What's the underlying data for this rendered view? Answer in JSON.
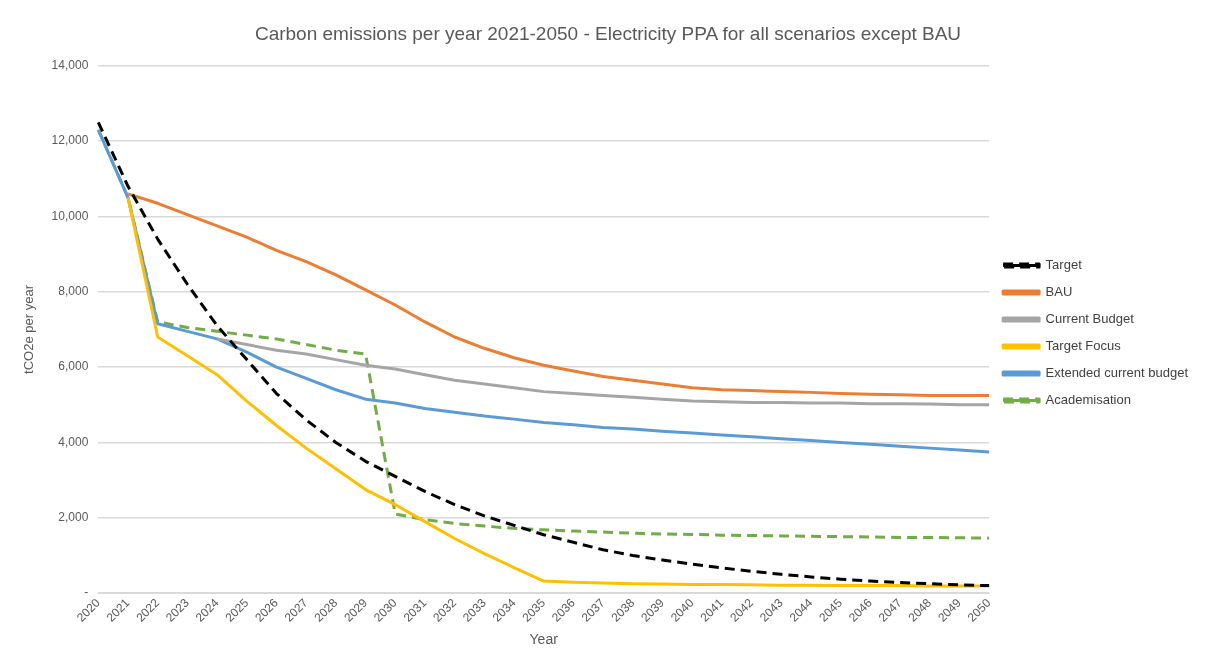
{
  "chart_data": {
    "type": "line",
    "title": "Carbon emissions per year 2021-2050 - Electricity PPA for all scenarios except BAU",
    "xlabel": "Year",
    "ylabel": "tCO2e per year",
    "categories": [
      "2020",
      "2021",
      "2022",
      "2023",
      "2024",
      "2025",
      "2026",
      "2027",
      "2028",
      "2029",
      "2030",
      "2031",
      "2032",
      "2033",
      "2034",
      "2035",
      "2036",
      "2037",
      "2038",
      "2039",
      "2040",
      "2041",
      "2042",
      "2043",
      "2044",
      "2045",
      "2046",
      "2047",
      "2048",
      "2049",
      "2050"
    ],
    "ylim": [
      0,
      14000
    ],
    "yticks": [
      {
        "value": 0,
        "label": "-"
      },
      {
        "value": 2000,
        "label": "2,000"
      },
      {
        "value": 4000,
        "label": "4,000"
      },
      {
        "value": 6000,
        "label": "6,000"
      },
      {
        "value": 8000,
        "label": "8,000"
      },
      {
        "value": 10000,
        "label": "10,000"
      },
      {
        "value": 12000,
        "label": "12,000"
      },
      {
        "value": 14000,
        "label": "14,000"
      }
    ],
    "grid": "y",
    "legend": "right",
    "marker": "none",
    "series": [
      {
        "name": "Target",
        "color": "#000000",
        "line_style": "dashed",
        "values": [
          12500,
          10800,
          9400,
          8200,
          7100,
          6200,
          5300,
          4600,
          4000,
          3500,
          3100,
          2700,
          2350,
          2050,
          1800,
          1550,
          1350,
          1150,
          1000,
          880,
          770,
          670,
          580,
          500,
          430,
          370,
          320,
          280,
          250,
          220,
          200
        ]
      },
      {
        "name": "BAU",
        "color": "#ed7d31",
        "line_style": "solid",
        "values": [
          null,
          10600,
          10350,
          10050,
          9750,
          9450,
          9100,
          8800,
          8450,
          8050,
          7650,
          7200,
          6800,
          6500,
          6250,
          6050,
          5900,
          5750,
          5650,
          5550,
          5450,
          5400,
          5380,
          5350,
          5330,
          5300,
          5280,
          5270,
          5250,
          5250,
          5250
        ]
      },
      {
        "name": "Current Budget",
        "color": "#a5a5a5",
        "line_style": "solid",
        "values": [
          null,
          null,
          null,
          null,
          6750,
          6600,
          6450,
          6350,
          6200,
          6050,
          5950,
          5800,
          5650,
          5550,
          5450,
          5350,
          5300,
          5250,
          5200,
          5150,
          5100,
          5080,
          5060,
          5060,
          5050,
          5050,
          5030,
          5030,
          5020,
          5000,
          5000
        ]
      },
      {
        "name": "Target Focus",
        "color": "#ffc000",
        "line_style": "solid",
        "values": [
          null,
          10500,
          6800,
          6300,
          5800,
          5100,
          4450,
          3850,
          3300,
          2750,
          2350,
          1900,
          1450,
          1050,
          680,
          320,
          290,
          270,
          250,
          240,
          230,
          230,
          220,
          210,
          210,
          200,
          200,
          200,
          190,
          190,
          190
        ]
      },
      {
        "name": "Extended current budget",
        "color": "#5b9bd5",
        "line_style": "solid",
        "values": [
          12300,
          10500,
          7150,
          6950,
          6750,
          6400,
          6000,
          5700,
          5400,
          5150,
          5050,
          4900,
          4800,
          4700,
          4620,
          4530,
          4470,
          4400,
          4360,
          4300,
          4250,
          4200,
          4150,
          4100,
          4050,
          4000,
          3950,
          3900,
          3850,
          3800,
          3750
        ]
      },
      {
        "name": "Academisation",
        "color": "#70ad47",
        "line_style": "dashed",
        "values": [
          12300,
          10500,
          7200,
          7050,
          6950,
          6850,
          6750,
          6600,
          6450,
          6350,
          2100,
          1950,
          1850,
          1780,
          1720,
          1680,
          1650,
          1620,
          1590,
          1570,
          1560,
          1540,
          1530,
          1520,
          1510,
          1500,
          1490,
          1480,
          1480,
          1470,
          1460
        ]
      }
    ]
  }
}
